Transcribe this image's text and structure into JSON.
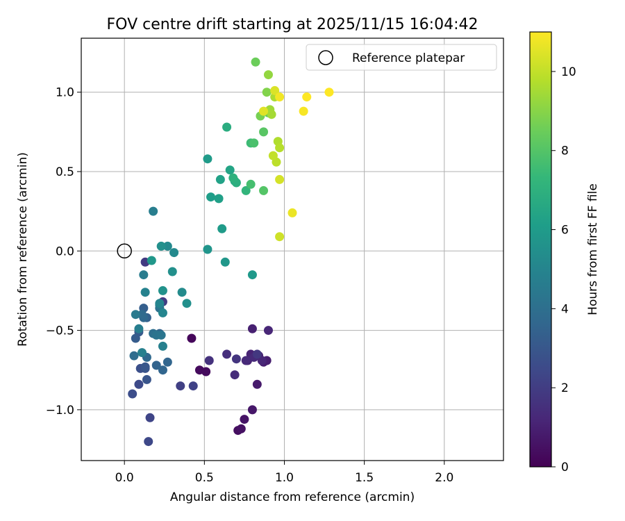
{
  "chart_data": {
    "type": "scatter",
    "title": "FOV centre drift starting at 2025/11/15 16:04:42",
    "xlabel": "Angular distance from reference (arcmin)",
    "ylabel": "Rotation from reference (arcmin)",
    "xlim": [
      -0.27,
      2.37
    ],
    "ylim": [
      -1.32,
      1.34
    ],
    "xticks": [
      0.0,
      0.5,
      1.0,
      1.5,
      2.0
    ],
    "xtick_labels": [
      "0.0",
      "0.5",
      "1.0",
      "1.5",
      "2.0"
    ],
    "yticks": [
      -1.0,
      -0.5,
      0.0,
      0.5,
      1.0
    ],
    "ytick_labels": [
      "−1.0",
      "−0.5",
      "0.0",
      "0.5",
      "1.0"
    ],
    "grid": true,
    "legend": {
      "entries": [
        "Reference platepar"
      ],
      "position": "upper right"
    },
    "reference_point": {
      "x": 0.0,
      "y": 0.0,
      "label": "Reference platepar"
    },
    "colorbar": {
      "label": "Hours from first FF file",
      "colormap": "viridis",
      "range": [
        0,
        11
      ],
      "ticks": [
        0,
        2,
        4,
        6,
        8,
        10
      ],
      "tick_labels": [
        "0",
        "2",
        "4",
        "6",
        "8",
        "10"
      ]
    },
    "series": [
      {
        "name": "FOV centre drift",
        "x": [
          0.42,
          0.47,
          0.51,
          0.71,
          0.73,
          0.75,
          0.8,
          0.83,
          0.87,
          0.89,
          0.8,
          0.84,
          0.77,
          0.79,
          0.9,
          0.86,
          0.81,
          0.76,
          0.69,
          0.64,
          0.53,
          0.7,
          0.83,
          0.13,
          0.24,
          0.35,
          0.43,
          0.16,
          0.15,
          0.09,
          0.05,
          0.1,
          0.13,
          0.14,
          0.13,
          0.09,
          0.07,
          0.12,
          0.14,
          0.2,
          0.22,
          0.27,
          0.24,
          0.14,
          0.12,
          0.11,
          0.06,
          0.18,
          0.22,
          0.2,
          0.23,
          0.22,
          0.07,
          0.12,
          0.09,
          0.11,
          0.24,
          0.13,
          0.22,
          0.24,
          0.18,
          0.27,
          0.31,
          0.3,
          0.36,
          0.39,
          0.17,
          0.23,
          0.24,
          0.52,
          0.63,
          0.8,
          0.61,
          0.52,
          0.54,
          0.59,
          0.6,
          0.66,
          0.69,
          0.64,
          0.7,
          0.68,
          0.76,
          0.79,
          0.79,
          0.81,
          0.87,
          0.87,
          0.9,
          0.82,
          0.85,
          0.89,
          0.9,
          0.91,
          0.92,
          0.94,
          0.96,
          0.97,
          0.95,
          0.93,
          0.97,
          0.97,
          0.94,
          0.87,
          1.05,
          0.97,
          1.12,
          1.14,
          1.28
        ],
        "y": [
          -0.55,
          -0.75,
          -0.76,
          -1.13,
          -1.12,
          -1.06,
          -1.0,
          -0.84,
          -0.7,
          -0.69,
          -0.49,
          -0.66,
          -0.69,
          -0.65,
          -0.5,
          -0.69,
          -0.67,
          -0.69,
          -0.78,
          -0.65,
          -0.69,
          -0.68,
          -0.65,
          -0.07,
          -0.32,
          -0.85,
          -0.85,
          -1.05,
          -1.2,
          -0.84,
          -0.9,
          -0.74,
          -0.74,
          -0.81,
          -0.73,
          -0.51,
          -0.55,
          -0.36,
          -0.42,
          -0.72,
          -0.52,
          -0.7,
          -0.75,
          -0.67,
          -0.42,
          -0.4,
          -0.66,
          -0.52,
          -0.36,
          -0.53,
          -0.53,
          -0.34,
          -0.4,
          -0.15,
          -0.49,
          -0.64,
          -0.6,
          -0.26,
          -0.33,
          -0.39,
          0.25,
          0.03,
          -0.01,
          -0.13,
          -0.26,
          -0.33,
          -0.06,
          0.03,
          -0.25,
          0.01,
          -0.07,
          -0.15,
          0.14,
          0.58,
          0.34,
          0.33,
          0.45,
          0.51,
          0.44,
          0.78,
          0.43,
          0.46,
          0.38,
          0.68,
          0.42,
          0.68,
          0.38,
          0.75,
          0.87,
          1.19,
          0.85,
          1.0,
          1.11,
          0.89,
          0.86,
          0.97,
          0.69,
          0.65,
          0.56,
          0.6,
          0.09,
          0.45,
          1.01,
          0.88,
          0.24,
          0.97,
          0.88,
          0.97,
          1.0
        ],
        "hours": [
          0.2,
          0.3,
          0.3,
          0.4,
          0.5,
          0.6,
          0.7,
          0.8,
          0.9,
          0.9,
          1.0,
          1.0,
          1.1,
          1.1,
          1.2,
          1.2,
          1.3,
          1.3,
          1.4,
          1.5,
          1.6,
          1.7,
          1.8,
          1.9,
          2.0,
          2.1,
          2.2,
          2.3,
          2.4,
          2.5,
          2.6,
          2.7,
          2.8,
          2.9,
          3.0,
          3.1,
          3.2,
          3.3,
          3.4,
          3.5,
          3.5,
          3.6,
          3.6,
          3.7,
          3.7,
          3.8,
          3.9,
          4.0,
          4.1,
          4.2,
          4.3,
          4.4,
          4.5,
          4.6,
          4.7,
          4.8,
          4.8,
          4.9,
          5.0,
          5.0,
          4.7,
          5.2,
          5.2,
          5.5,
          5.3,
          5.5,
          5.8,
          5.5,
          5.6,
          5.7,
          5.8,
          5.9,
          6.0,
          6.0,
          6.1,
          6.2,
          6.3,
          6.4,
          6.6,
          6.8,
          6.9,
          7.0,
          7.2,
          7.5,
          7.7,
          7.8,
          8.0,
          8.1,
          8.3,
          8.5,
          8.7,
          8.9,
          9.2,
          9.4,
          9.5,
          9.6,
          9.7,
          9.8,
          9.9,
          10.0,
          10.2,
          10.3,
          10.4,
          10.5,
          10.7,
          10.8,
          10.9,
          11.0,
          11.0
        ]
      }
    ]
  }
}
